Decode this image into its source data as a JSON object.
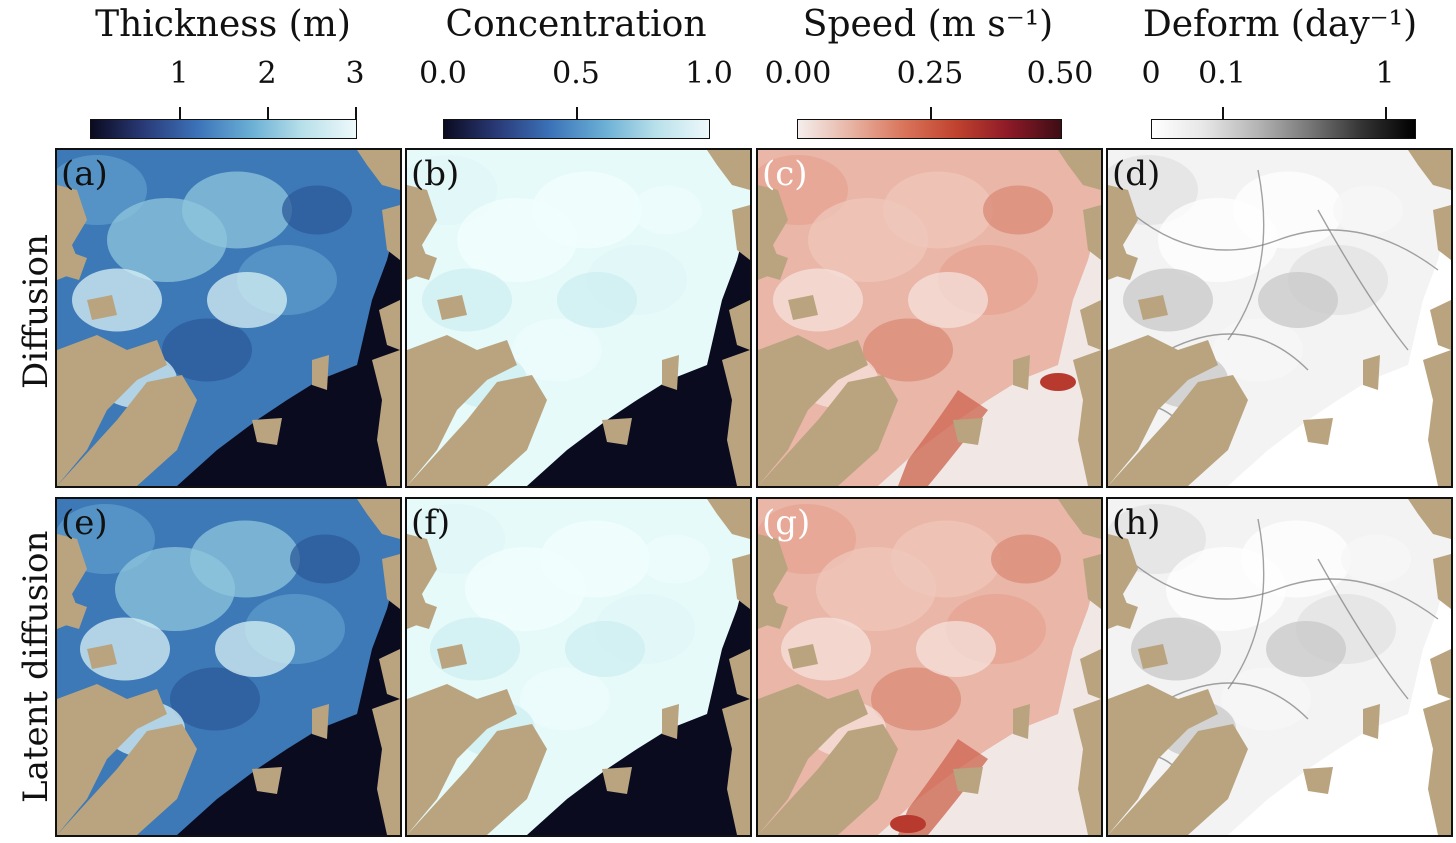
{
  "colorbars": [
    {
      "title": "Thickness (m)",
      "ticks": [
        "1",
        "2",
        "3"
      ]
    },
    {
      "title": "Concentration",
      "ticks": [
        "0.0",
        "0.5",
        "1.0"
      ]
    },
    {
      "title": "Speed (m s⁻¹)",
      "ticks": [
        "0.00",
        "0.25",
        "0.50"
      ]
    },
    {
      "title": "Deform (day⁻¹)",
      "ticks": [
        "0",
        "0.1",
        "1"
      ]
    }
  ],
  "rows": [
    {
      "label": "Diffusion",
      "panels": [
        "(a)",
        "(b)",
        "(c)",
        "(d)"
      ]
    },
    {
      "label": "Latent diffusion",
      "panels": [
        "(e)",
        "(f)",
        "(g)",
        "(h)"
      ]
    }
  ],
  "colors": {
    "land": "#b9a47f",
    "open_water": "#0c0c1e"
  }
}
